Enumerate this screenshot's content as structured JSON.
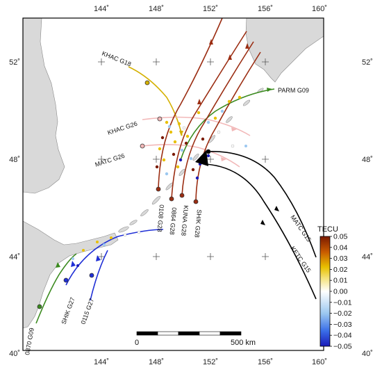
{
  "map": {
    "lon_labels": [
      "144˚",
      "148˚",
      "152˚",
      "156˚",
      "160˚"
    ],
    "lat_labels": [
      "52˚",
      "48˚",
      "44˚",
      "40˚"
    ],
    "land_color": "#d9d9d9",
    "sea_color": "#ffffff",
    "epicenter_marker": "black-triangle"
  },
  "tracks": [
    {
      "label": "KHAC G18",
      "color": "#d4b000"
    },
    {
      "label": "KHAC G26",
      "color": "#f2b8b8"
    },
    {
      "label": "MATC G26",
      "color": "#f2b8b8"
    },
    {
      "label": "PARM G09",
      "color": "#3a8a1e"
    },
    {
      "label": "0108 G28",
      "color": "#9b2d12"
    },
    {
      "label": "0864 G28",
      "color": "#9b2d12"
    },
    {
      "label": "KUNA G28",
      "color": "#9b2d12"
    },
    {
      "label": "SHIK G28",
      "color": "#9b2d12"
    },
    {
      "label": "MATC G15",
      "color": "#000000"
    },
    {
      "label": "KETC G15",
      "color": "#000000"
    },
    {
      "label": "SHIK G27",
      "color": "#1f2fd6"
    },
    {
      "label": "0115 G27",
      "color": "#1f2fd6"
    },
    {
      "label": "0870 G09",
      "color": "#3a8a1e"
    }
  ],
  "colorbar": {
    "title": "TECU",
    "ticks": [
      "0.05",
      "0.04",
      "0.03",
      "0.02",
      "0.01",
      "0.00",
      "−0.01",
      "−0.02",
      "−0.03",
      "−0.04",
      "−0.05"
    ],
    "min": -0.05,
    "max": 0.05,
    "colors": [
      "#1a1ab8",
      "#3a6ee8",
      "#9cc8f0",
      "#ffffff",
      "#f4e27a",
      "#e8c000",
      "#c85a00",
      "#7a1a00"
    ]
  },
  "scalebar": {
    "start_label": "0",
    "end_label": "500 km"
  }
}
